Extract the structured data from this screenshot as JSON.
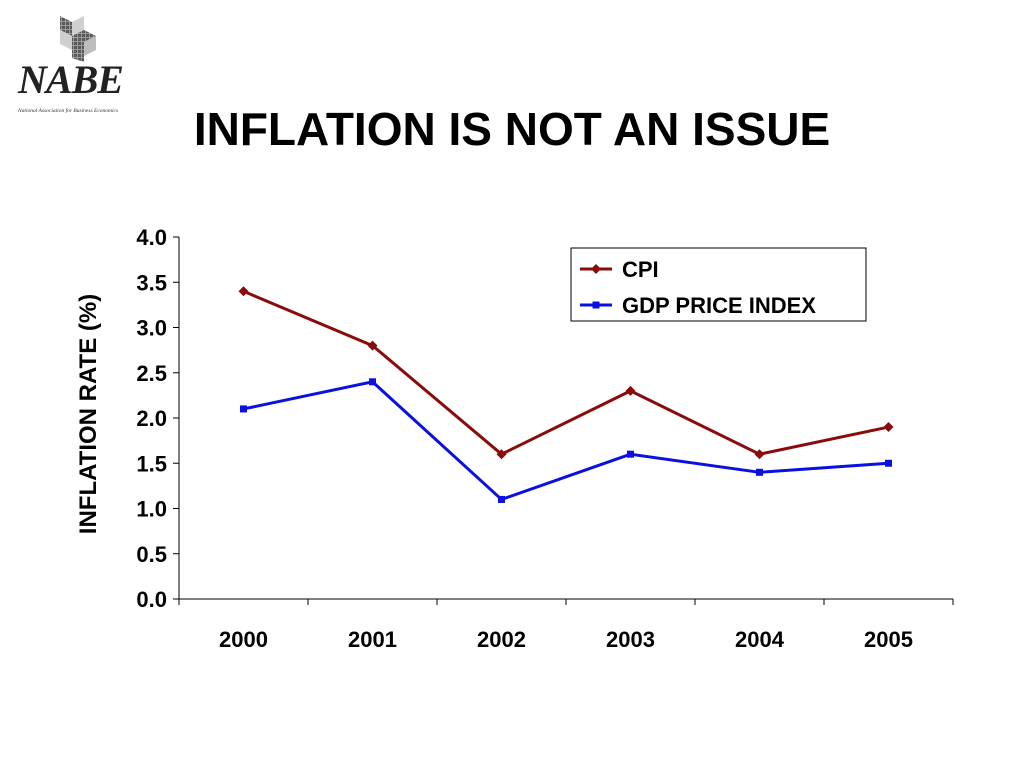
{
  "slide": {
    "title": "INFLATION IS NOT AN ISSUE"
  },
  "logo": {
    "word": "NABE",
    "subtitle": "National Association for Business Economics"
  },
  "colors": {
    "cpi": "#8b0a0a",
    "gdp": "#0a10e0",
    "axis": "#000000"
  },
  "chart_data": {
    "type": "line",
    "categories": [
      "2000",
      "2001",
      "2002",
      "2003",
      "2004",
      "2005"
    ],
    "series": [
      {
        "name": "CPI",
        "values": [
          3.4,
          2.8,
          1.6,
          2.3,
          1.6,
          1.9
        ],
        "marker": "diamond"
      },
      {
        "name": "GDP PRICE INDEX",
        "values": [
          2.1,
          2.4,
          1.1,
          1.6,
          1.4,
          1.5
        ],
        "marker": "square"
      }
    ],
    "ylabel": "INFLATION RATE (%)",
    "xlabel": "",
    "ylim": [
      0,
      4.0
    ],
    "yticks": [
      "0.0",
      "0.5",
      "1.0",
      "1.5",
      "2.0",
      "2.5",
      "3.0",
      "3.5",
      "4.0"
    ],
    "grid": false,
    "legend_position": "top-right"
  }
}
